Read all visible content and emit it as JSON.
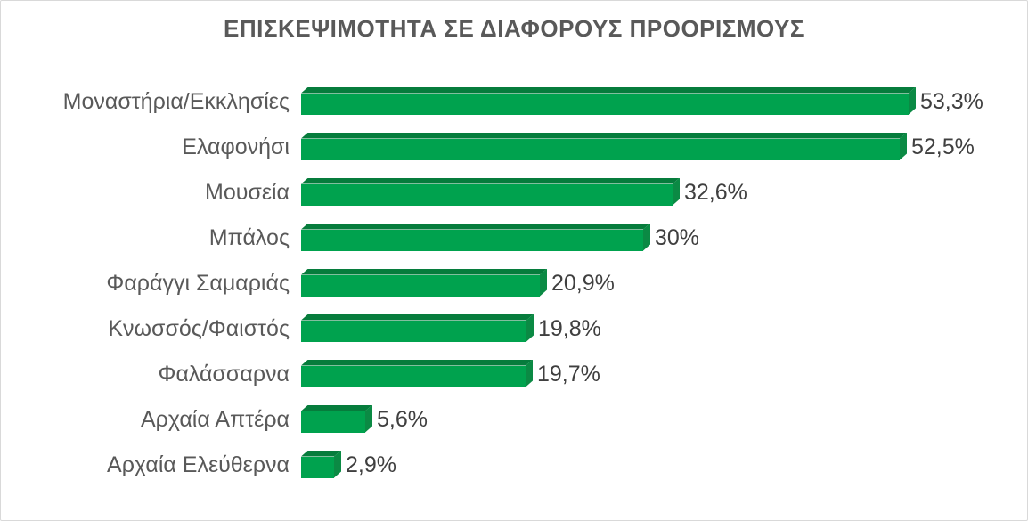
{
  "chart_data": {
    "type": "bar",
    "orientation": "horizontal",
    "style": "3d-bevel",
    "title": "ΕΠΙΣΚΕΨΙΜΟΤΗΤΑ ΣΕ ΔΙΑΦΟΡΟΥΣ ΠΡΟΟΡΙΣΜΟΥΣ",
    "categories": [
      "Μοναστήρια/Εκκλησίες",
      "Ελαφονήσι",
      "Μουσεία",
      "Μπάλος",
      "Φαράγγι Σαμαριάς",
      "Κνωσσός/Φαιστός",
      "Φαλάσσαρνα",
      "Αρχαία Απτέρα",
      "Αρχαία Ελεύθερνα"
    ],
    "values": [
      53.3,
      52.5,
      32.6,
      30,
      20.9,
      19.8,
      19.7,
      5.6,
      2.9
    ],
    "value_labels": [
      "53,3%",
      "52,5%",
      "32,6%",
      "30%",
      "20,9%",
      "19,8%",
      "19,7%",
      "5,6%",
      "2,9%"
    ],
    "xlabel": "",
    "ylabel": "",
    "xlim": [
      0,
      55
    ],
    "grid": false,
    "legend": false,
    "data_labels_position": "outside-end",
    "colors": {
      "bar_front": "#00A24E",
      "bar_top": "#067C3C",
      "bar_side": "#0B8A44",
      "title_text": "#595959",
      "category_text": "#595959",
      "value_text": "#3F3F3F",
      "frame_border": "#D9D9D9",
      "background": "#FFFFFF"
    }
  }
}
